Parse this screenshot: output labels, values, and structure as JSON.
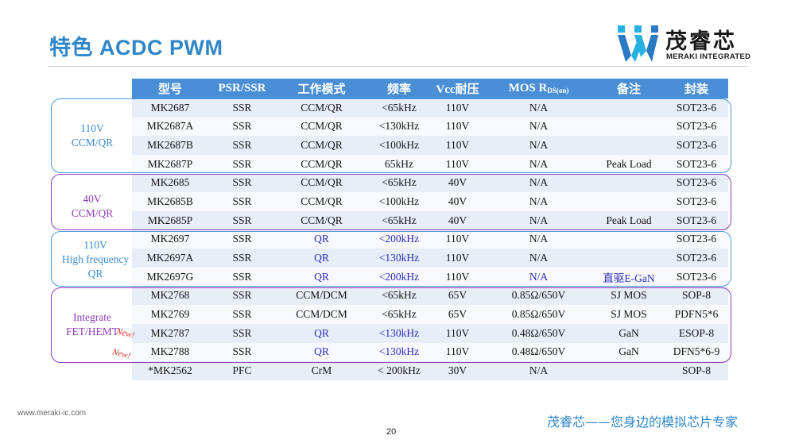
{
  "slide": {
    "title": "特色 ACDC PWM",
    "page_number": "20",
    "footer_url": "www.meraki-ic.com",
    "footer_slogan": "茂睿芯——您身边的模拟芯片专家"
  },
  "logo": {
    "name_cn": "茂睿芯",
    "name_en": "MERAKI INTEGRATED",
    "colors": {
      "blue": "#2a7bc4",
      "cyan": "#29b0e3",
      "dark": "#1a1a1a"
    }
  },
  "table": {
    "headers": [
      "型号",
      "PSR/SSR",
      "工作模式",
      "频率",
      "Vcc耐压",
      "MOS R",
      "备注",
      "封装"
    ],
    "mos_subscript": "DS(on)",
    "rows": [
      [
        "MK2687",
        "SSR",
        "CCM/QR",
        "<65kHz",
        "110V",
        "N/A",
        "",
        "SOT23-6"
      ],
      [
        "MK2687A",
        "SSR",
        "CCM/QR",
        "<130kHz",
        "110V",
        "N/A",
        "",
        "SOT23-6"
      ],
      [
        "MK2687B",
        "SSR",
        "CCM/QR",
        "<100kHz",
        "110V",
        "N/A",
        "",
        "SOT23-6"
      ],
      [
        "MK2687P",
        "SSR",
        "CCM/QR",
        "65kHz",
        "110V",
        "N/A",
        "Peak Load",
        "SOT23-6"
      ],
      [
        "MK2685",
        "SSR",
        "CCM/QR",
        "<65kHz",
        "40V",
        "N/A",
        "",
        "SOT23-6"
      ],
      [
        "MK2685B",
        "SSR",
        "CCM/QR",
        "<100kHz",
        "40V",
        "N/A",
        "",
        "SOT23-6"
      ],
      [
        "MK2685P",
        "SSR",
        "CCM/QR",
        "<65kHz",
        "40V",
        "N/A",
        "Peak Load",
        "SOT23-6"
      ],
      [
        "MK2697",
        "SSR",
        "QR",
        "<200kHz",
        "110V",
        "N/A",
        "",
        "SOT23-6"
      ],
      [
        "MK2697A",
        "SSR",
        "QR",
        "<130kHz",
        "110V",
        "N/A",
        "",
        "SOT23-6"
      ],
      [
        "MK2697G",
        "SSR",
        "QR",
        "<200kHz",
        "110V",
        "N/A",
        "直驱E-GaN",
        "SOT23-6"
      ],
      [
        "MK2768",
        "SSR",
        "CCM/DCM",
        "<65kHz",
        "65V",
        "0.85Ω/650V",
        "SJ MOS",
        "SOP-8"
      ],
      [
        "MK2769",
        "SSR",
        "CCM/DCM",
        "<65kHz",
        "65V",
        "0.85Ω/650V",
        "SJ MOS",
        "PDFN5*6"
      ],
      [
        "MK2787",
        "SSR",
        "QR",
        "<130kHz",
        "110V",
        "0.48Ω/650V",
        "GaN",
        "ESOP-8"
      ],
      [
        "MK2788",
        "SSR",
        "QR",
        "<130kHz",
        "110V",
        "0.48Ω/650V",
        "GaN",
        "DFN5*6-9"
      ],
      [
        "*MK2562",
        "PFC",
        "CrM",
        "< 200kHz",
        "30V",
        "N/A",
        "",
        "SOP-8"
      ]
    ]
  },
  "groups": [
    {
      "lines": [
        "110V",
        "CCM/QR"
      ],
      "border_color": "#4a9ad8",
      "text_color": "#3a8bd0"
    },
    {
      "lines": [
        "40V",
        "CCM/QR"
      ],
      "border_color": "#8e3cb8",
      "text_color": "#8e3cb8"
    },
    {
      "lines": [
        "110V",
        "High frequency",
        "QR"
      ],
      "border_color": "#4a9ad8",
      "text_color": "#3a8bd0"
    },
    {
      "lines": [
        "Integrate",
        "FET/HEMT"
      ],
      "border_color": "#8e3cb8",
      "text_color": "#8e3cb8"
    }
  ],
  "new_tags": [
    "New!",
    "New!"
  ],
  "colors": {
    "header_bg": "#4a8fd6",
    "title": "#2f86c8",
    "highlight_text": "#2c2ab8",
    "new_tag": "#d62a2a"
  }
}
